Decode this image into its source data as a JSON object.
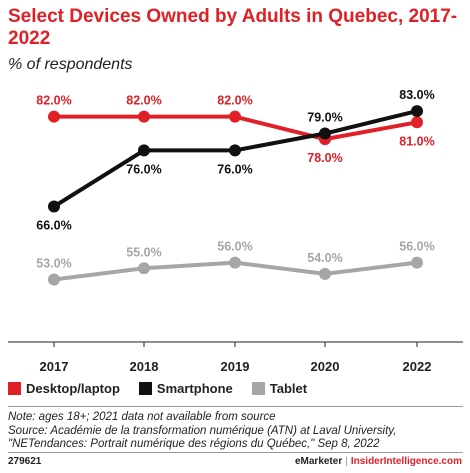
{
  "header": {
    "title": "Select Devices Owned by Adults in Quebec, 2017-2022",
    "subtitle": "% of respondents"
  },
  "chart_data": {
    "type": "line",
    "x": [
      "2017",
      "2018",
      "2019",
      "2020",
      "2022"
    ],
    "ylim": [
      45,
      88
    ],
    "grid": false,
    "legend_position": "bottom",
    "colors": {
      "Desktop/laptop": "#e02027",
      "Smartphone": "#111111",
      "Tablet": "#a6a6a6"
    },
    "series": [
      {
        "name": "Desktop/laptop",
        "values": [
          82.0,
          82.0,
          82.0,
          78.0,
          81.0
        ],
        "labels": [
          "82.0%",
          "82.0%",
          "82.0%",
          "78.0%",
          "81.0%"
        ]
      },
      {
        "name": "Smartphone",
        "values": [
          66.0,
          76.0,
          76.0,
          79.0,
          83.0
        ],
        "labels": [
          "66.0%",
          "76.0%",
          "76.0%",
          "79.0%",
          "83.0%"
        ]
      },
      {
        "name": "Tablet",
        "values": [
          53.0,
          55.0,
          56.0,
          54.0,
          56.0
        ],
        "labels": [
          "53.0%",
          "55.0%",
          "56.0%",
          "54.0%",
          "56.0%"
        ]
      }
    ]
  },
  "legend": {
    "items": [
      {
        "label": "Desktop/laptop",
        "color": "#e02027"
      },
      {
        "label": "Smartphone",
        "color": "#111111"
      },
      {
        "label": "Tablet",
        "color": "#a6a6a6"
      }
    ]
  },
  "notes": {
    "note": "Note: ages 18+; 2021 data not available from source",
    "source": "Source: Académie de la transformation numérique (ATN) at Laval University, \"NETendances: Portrait numérique des régions du Québec,\" Sep 8, 2022"
  },
  "footer": {
    "code": "279621",
    "brand_left": "eMarketer",
    "separator": "|",
    "brand_right": "InsiderIntelligence.com"
  }
}
